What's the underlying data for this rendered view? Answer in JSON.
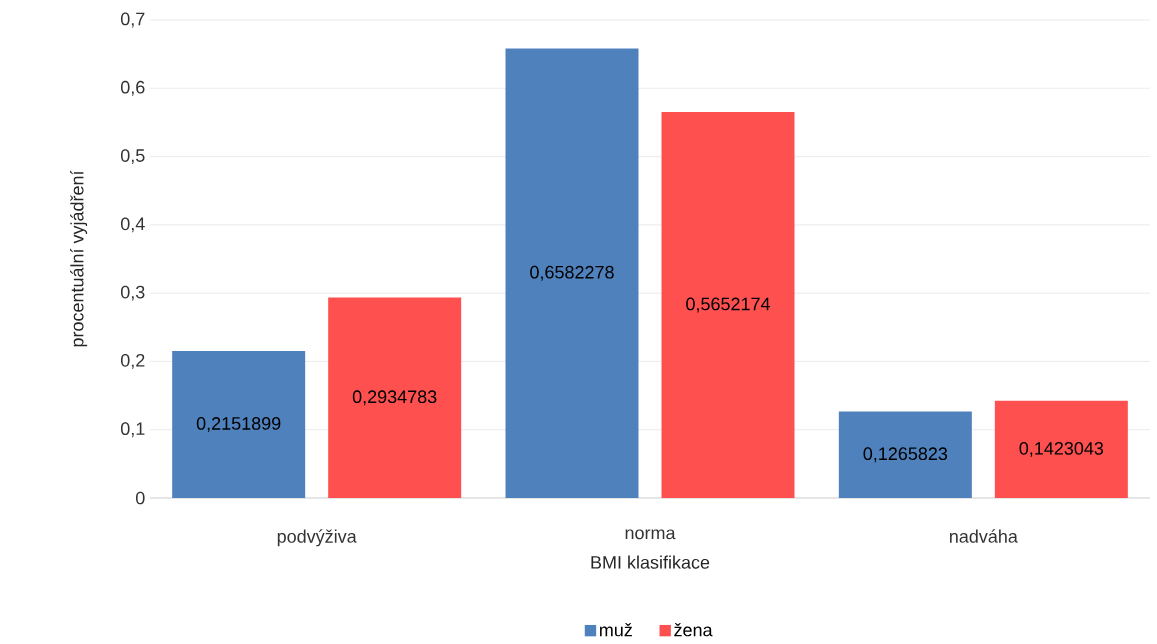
{
  "chart_data": {
    "type": "bar",
    "xlabel": "BMI klasifikace",
    "ylabel": "procentuální vyjádření",
    "categories": [
      "podvýživa",
      "norma",
      "nadváha"
    ],
    "series": [
      {
        "name": "muž",
        "color": "#4f81bd",
        "values": [
          0.2151899,
          0.6582278,
          0.1265823
        ],
        "value_labels": [
          "0,2151899",
          "0,6582278",
          "0,1265823"
        ]
      },
      {
        "name": "žena",
        "color": "#ff5050",
        "values": [
          0.2934783,
          0.5652174,
          0.1423043
        ],
        "value_labels": [
          "0,2934783",
          "0,5652174",
          "0,1423043"
        ]
      }
    ],
    "ylim": [
      0,
      0.7
    ],
    "yticks": [
      0,
      {
        "value": 0.1,
        "label": "0,1"
      },
      {
        "value": 0.2,
        "label": "0,2"
      },
      {
        "value": 0.3,
        "label": "0,3"
      },
      {
        "value": 0.4,
        "label": "0,4"
      },
      {
        "value": 0.5,
        "label": "0,5"
      },
      {
        "value": 0.6,
        "label": "0,6"
      },
      {
        "value": 0.7,
        "label": "0,7"
      }
    ],
    "grid": "y",
    "legend": "bottom"
  }
}
